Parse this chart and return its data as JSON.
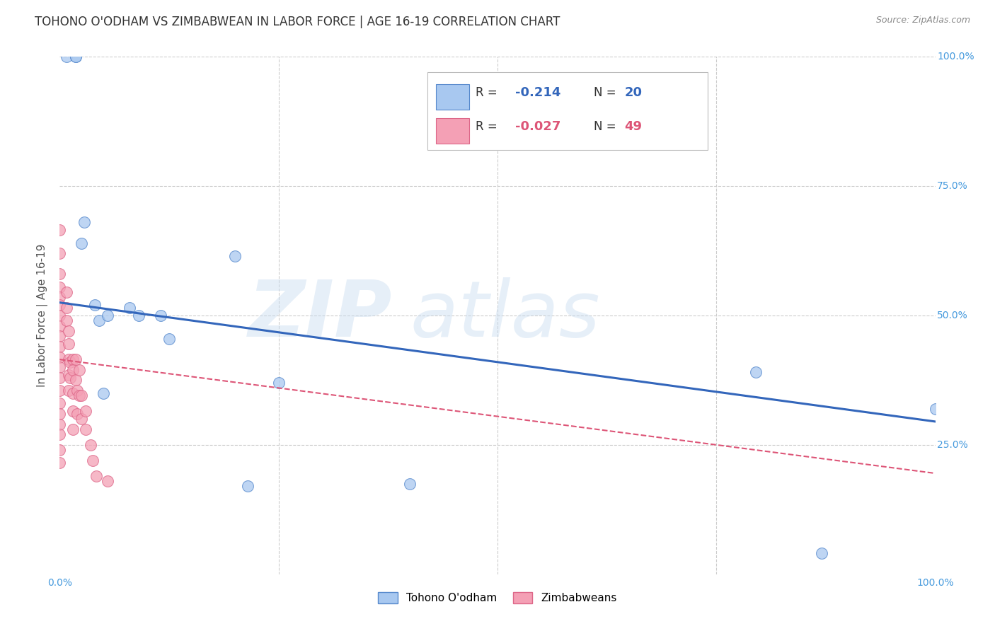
{
  "title": "TOHONO O'ODHAM VS ZIMBABWEAN IN LABOR FORCE | AGE 16-19 CORRELATION CHART",
  "source": "Source: ZipAtlas.com",
  "ylabel": "In Labor Force | Age 16-19",
  "xlim": [
    0,
    1.0
  ],
  "ylim": [
    0,
    1.0
  ],
  "legend_blue_label": "Tohono O'odham",
  "legend_pink_label": "Zimbabweans",
  "blue_R": "-0.214",
  "blue_N": "20",
  "pink_R": "-0.027",
  "pink_N": "49",
  "blue_color": "#A8C8F0",
  "pink_color": "#F4A0B5",
  "blue_edge_color": "#5588CC",
  "pink_edge_color": "#DD6688",
  "blue_line_color": "#3366BB",
  "pink_line_color": "#DD5577",
  "background_color": "#FFFFFF",
  "grid_color": "#CCCCCC",
  "title_color": "#333333",
  "tick_color": "#4499DD",
  "blue_line_y0": 0.525,
  "blue_line_y1": 0.295,
  "pink_line_y0": 0.415,
  "pink_line_y1": 0.195,
  "blue_points_x": [
    0.008,
    0.018,
    0.018,
    0.025,
    0.028,
    0.04,
    0.045,
    0.05,
    0.055,
    0.08,
    0.09,
    0.115,
    0.125,
    0.2,
    0.215,
    0.25,
    0.4,
    0.795,
    0.87,
    1.0
  ],
  "blue_points_y": [
    1.0,
    1.0,
    1.0,
    0.64,
    0.68,
    0.52,
    0.49,
    0.35,
    0.5,
    0.515,
    0.5,
    0.5,
    0.455,
    0.615,
    0.17,
    0.37,
    0.175,
    0.39,
    0.04,
    0.32
  ],
  "pink_points_x": [
    0.0,
    0.0,
    0.0,
    0.0,
    0.0,
    0.0,
    0.0,
    0.0,
    0.0,
    0.0,
    0.0,
    0.0,
    0.0,
    0.0,
    0.0,
    0.0,
    0.0,
    0.0,
    0.0,
    0.0,
    0.008,
    0.008,
    0.008,
    0.01,
    0.01,
    0.01,
    0.01,
    0.01,
    0.012,
    0.012,
    0.015,
    0.015,
    0.015,
    0.015,
    0.015,
    0.018,
    0.018,
    0.02,
    0.02,
    0.022,
    0.022,
    0.025,
    0.025,
    0.03,
    0.03,
    0.035,
    0.038,
    0.042,
    0.055
  ],
  "pink_points_y": [
    0.665,
    0.62,
    0.58,
    0.555,
    0.535,
    0.52,
    0.5,
    0.48,
    0.46,
    0.44,
    0.42,
    0.4,
    0.38,
    0.355,
    0.33,
    0.31,
    0.29,
    0.27,
    0.24,
    0.215,
    0.545,
    0.515,
    0.49,
    0.47,
    0.445,
    0.415,
    0.385,
    0.355,
    0.41,
    0.38,
    0.415,
    0.395,
    0.35,
    0.315,
    0.28,
    0.415,
    0.375,
    0.355,
    0.31,
    0.395,
    0.345,
    0.345,
    0.3,
    0.315,
    0.28,
    0.25,
    0.22,
    0.19,
    0.18
  ]
}
